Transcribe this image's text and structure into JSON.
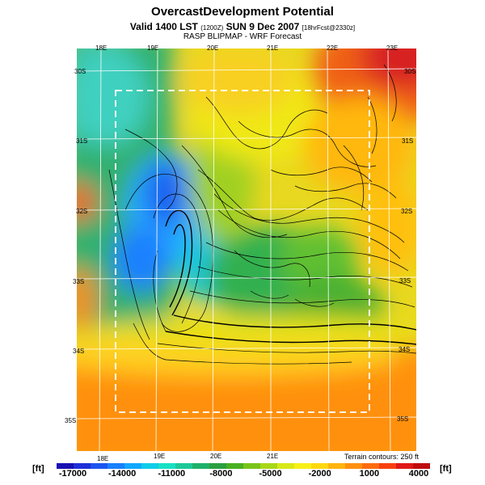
{
  "header": {
    "title": "OvercastDevelopment Potential",
    "valid_main": "Valid 1400 LST",
    "valid_small": "(1200Z)",
    "valid_date": "SUN 9 Dec 2007",
    "valid_fcst": "[18hrFcst@2330z]",
    "source": "RASP BLIPMAP - WRF Forecast"
  },
  "map": {
    "top_lon_labels": [
      "18E",
      "19E",
      "20E",
      "21E",
      "22E",
      "23E"
    ],
    "bottom_lon_labels": [
      "18E",
      "19E",
      "20E",
      "21E"
    ],
    "right_lat_labels": [
      "30S",
      "31S",
      "32S",
      "33S",
      "34S",
      "35S"
    ],
    "left_lat_labels": [
      "30S",
      "31S",
      "32S",
      "33S",
      "34S",
      "35S"
    ],
    "terrain_note": "Terrain contours: 250 ft"
  },
  "legend": {
    "unit_left": "[ft]",
    "unit_right": "[ft]",
    "ticks": [
      "-17000",
      "-14000",
      "-11000",
      "-8000",
      "-5000",
      "-2000",
      "1000",
      "4000"
    ],
    "colors": [
      "#1a10b0",
      "#1f30d8",
      "#1e55f0",
      "#1880ff",
      "#12a8ff",
      "#10cce8",
      "#18e0c4",
      "#1ec898",
      "#20b06a",
      "#2aa040",
      "#48b020",
      "#78c418",
      "#a8d818",
      "#d8e818",
      "#f8f018",
      "#ffd810",
      "#ffb410",
      "#ff9010",
      "#ff6c10",
      "#f84010",
      "#e01818",
      "#c00c0c"
    ]
  }
}
